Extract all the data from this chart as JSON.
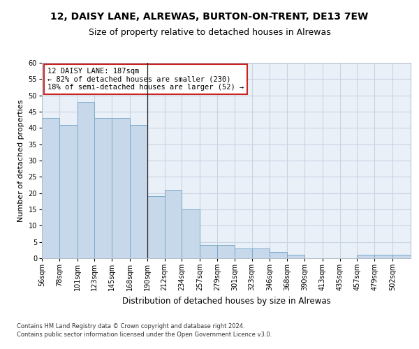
{
  "title_line1": "12, DAISY LANE, ALREWAS, BURTON-ON-TRENT, DE13 7EW",
  "title_line2": "Size of property relative to detached houses in Alrewas",
  "xlabel": "Distribution of detached houses by size in Alrewas",
  "ylabel": "Number of detached properties",
  "footnote1": "Contains HM Land Registry data © Crown copyright and database right 2024.",
  "footnote2": "Contains public sector information licensed under the Open Government Licence v3.0.",
  "annotation_line1": "12 DAISY LANE: 187sqm",
  "annotation_line2": "← 82% of detached houses are smaller (230)",
  "annotation_line3": "18% of semi-detached houses are larger (52) →",
  "bar_color": "#c8d8eb",
  "bar_edge_color": "#7aaac8",
  "grid_color": "#c8d4e4",
  "background_color": "#eaf0f8",
  "categories": [
    "56sqm",
    "78sqm",
    "101sqm",
    "123sqm",
    "145sqm",
    "168sqm",
    "190sqm",
    "212sqm",
    "234sqm",
    "257sqm",
    "279sqm",
    "301sqm",
    "323sqm",
    "346sqm",
    "368sqm",
    "390sqm",
    "413sqm",
    "435sqm",
    "457sqm",
    "479sqm",
    "502sqm"
  ],
  "bin_edges": [
    56,
    78,
    101,
    123,
    145,
    168,
    190,
    212,
    234,
    257,
    279,
    301,
    323,
    346,
    368,
    390,
    413,
    435,
    457,
    479,
    502
  ],
  "values": [
    43,
    41,
    48,
    43,
    43,
    41,
    19,
    21,
    15,
    4,
    4,
    3,
    3,
    2,
    1,
    0,
    0,
    0,
    1,
    1,
    1
  ],
  "ylim": [
    0,
    60
  ],
  "yticks": [
    0,
    5,
    10,
    15,
    20,
    25,
    30,
    35,
    40,
    45,
    50,
    55,
    60
  ],
  "annotation_box_color": "white",
  "annotation_box_edge": "#cc2222",
  "annotation_fontsize": 7.5,
  "title1_fontsize": 10,
  "title2_fontsize": 9,
  "xlabel_fontsize": 8.5,
  "ylabel_fontsize": 8,
  "tick_fontsize": 7,
  "footnote_fontsize": 6,
  "property_line_x": 190
}
